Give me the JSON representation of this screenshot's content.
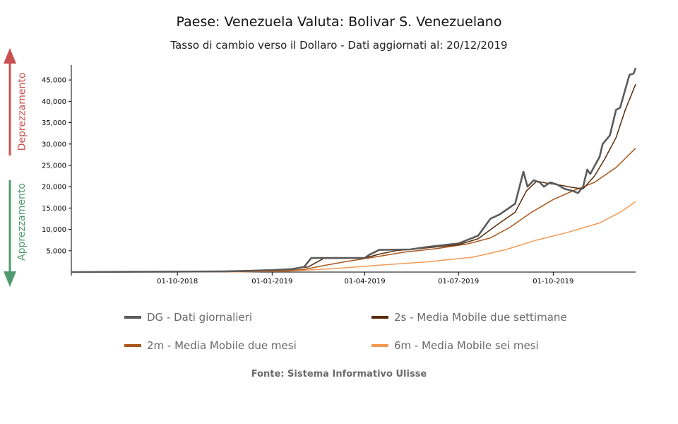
{
  "title": "Paese: Venezuela Valuta: Bolivar S. Venezuelano",
  "subtitle": "Tasso di cambio verso il Dollaro - Dati aggiornati al: 20/12/2019",
  "source": "Fonte: Sistema Informativo Ulisse",
  "side": {
    "up_label": "Deprezzamento",
    "down_label": "Apprezzamento",
    "up_color": "#c9504f",
    "down_color": "#4f9a6e"
  },
  "chart_data": {
    "type": "line",
    "title": "Paese: Venezuela Valuta: Bolivar S. Venezuelano",
    "subtitle": "Tasso di cambio verso il Dollaro - Dati aggiornati al: 20/12/2019",
    "xlabel": "",
    "ylabel": "",
    "xlim": [
      "2018-06-20",
      "2019-12-20"
    ],
    "ylim": [
      0,
      48500
    ],
    "x_ticks": [
      "01-10-2018",
      "01-01-2019",
      "01-04-2019",
      "01-07-2019",
      "01-10-2019"
    ],
    "y_ticks": [
      "5,000",
      "10,000",
      "15,000",
      "20,000",
      "25,000",
      "30,000",
      "35,000",
      "40,000",
      "45,000"
    ],
    "y_tick_values": [
      5000,
      10000,
      15000,
      20000,
      25000,
      30000,
      35000,
      40000,
      45000
    ],
    "grid": false,
    "legend_position": "bottom",
    "series": [
      {
        "name": "DG - Dati giornalieri",
        "color": "#5b5b5b",
        "points": [
          [
            "2018-06-20",
            3
          ],
          [
            "2018-08-20",
            60
          ],
          [
            "2018-10-01",
            100
          ],
          [
            "2018-11-15",
            150
          ],
          [
            "2018-12-10",
            300
          ],
          [
            "2018-12-31",
            450
          ],
          [
            "2019-01-20",
            700
          ],
          [
            "2019-02-01",
            1200
          ],
          [
            "2019-02-08",
            3300
          ],
          [
            "2019-03-15",
            3300
          ],
          [
            "2019-04-01",
            3300
          ],
          [
            "2019-04-05",
            4000
          ],
          [
            "2019-04-15",
            5200
          ],
          [
            "2019-05-15",
            5300
          ],
          [
            "2019-06-01",
            5900
          ],
          [
            "2019-07-01",
            6700
          ],
          [
            "2019-07-20",
            8500
          ],
          [
            "2019-08-01",
            12500
          ],
          [
            "2019-08-10",
            13500
          ],
          [
            "2019-08-25",
            16000
          ],
          [
            "2019-09-02",
            23500
          ],
          [
            "2019-09-06",
            20000
          ],
          [
            "2019-09-12",
            21500
          ],
          [
            "2019-09-18",
            21000
          ],
          [
            "2019-09-22",
            20000
          ],
          [
            "2019-09-28",
            21000
          ],
          [
            "2019-10-05",
            20500
          ],
          [
            "2019-10-12",
            19500
          ],
          [
            "2019-10-20",
            19000
          ],
          [
            "2019-10-25",
            18500
          ],
          [
            "2019-10-30",
            20000
          ],
          [
            "2019-11-03",
            24000
          ],
          [
            "2019-11-06",
            23000
          ],
          [
            "2019-11-15",
            27000
          ],
          [
            "2019-11-18",
            30000
          ],
          [
            "2019-11-25",
            32000
          ],
          [
            "2019-12-01",
            38000
          ],
          [
            "2019-12-05",
            38500
          ],
          [
            "2019-12-09",
            42000
          ],
          [
            "2019-12-14",
            46200
          ],
          [
            "2019-12-18",
            46500
          ],
          [
            "2019-12-20",
            47800
          ]
        ]
      },
      {
        "name": "2s - Media Mobile due settimane",
        "color": "#5a2a0a",
        "points": [
          [
            "2018-06-20",
            3
          ],
          [
            "2018-10-01",
            90
          ],
          [
            "2018-12-15",
            300
          ],
          [
            "2019-01-15",
            600
          ],
          [
            "2019-02-05",
            1200
          ],
          [
            "2019-02-20",
            3200
          ],
          [
            "2019-04-01",
            3300
          ],
          [
            "2019-04-15",
            4200
          ],
          [
            "2019-05-01",
            5000
          ],
          [
            "2019-06-01",
            5700
          ],
          [
            "2019-07-01",
            6400
          ],
          [
            "2019-07-20",
            7800
          ],
          [
            "2019-08-10",
            11500
          ],
          [
            "2019-08-25",
            14000
          ],
          [
            "2019-09-05",
            19000
          ],
          [
            "2019-09-15",
            21300
          ],
          [
            "2019-09-25",
            20800
          ],
          [
            "2019-10-05",
            20500
          ],
          [
            "2019-10-20",
            19800
          ],
          [
            "2019-10-30",
            19500
          ],
          [
            "2019-11-10",
            22500
          ],
          [
            "2019-11-20",
            26500
          ],
          [
            "2019-12-01",
            31500
          ],
          [
            "2019-12-10",
            38000
          ],
          [
            "2019-12-15",
            41000
          ],
          [
            "2019-12-20",
            44000
          ]
        ]
      },
      {
        "name": "2m - Media Mobile due mesi",
        "color": "#a9561c",
        "points": [
          [
            "2018-06-20",
            3
          ],
          [
            "2018-11-01",
            80
          ],
          [
            "2018-12-31",
            200
          ],
          [
            "2019-02-01",
            600
          ],
          [
            "2019-02-20",
            1500
          ],
          [
            "2019-03-15",
            2500
          ],
          [
            "2019-04-10",
            3500
          ],
          [
            "2019-05-10",
            4700
          ],
          [
            "2019-06-10",
            5500
          ],
          [
            "2019-07-10",
            6600
          ],
          [
            "2019-08-01",
            8000
          ],
          [
            "2019-08-20",
            10500
          ],
          [
            "2019-09-10",
            14000
          ],
          [
            "2019-10-01",
            17000
          ],
          [
            "2019-10-20",
            19000
          ],
          [
            "2019-11-10",
            21000
          ],
          [
            "2019-12-01",
            24500
          ],
          [
            "2019-12-20",
            29000
          ]
        ]
      },
      {
        "name": "6m - Media Mobile sei mesi",
        "color": "#f39a55",
        "points": [
          [
            "2018-06-20",
            3
          ],
          [
            "2018-12-01",
            50
          ],
          [
            "2019-01-15",
            200
          ],
          [
            "2019-03-01",
            800
          ],
          [
            "2019-04-15",
            1600
          ],
          [
            "2019-06-01",
            2400
          ],
          [
            "2019-07-15",
            3500
          ],
          [
            "2019-08-15",
            5200
          ],
          [
            "2019-09-15",
            7500
          ],
          [
            "2019-10-15",
            9300
          ],
          [
            "2019-11-15",
            11500
          ],
          [
            "2019-12-05",
            14000
          ],
          [
            "2019-12-20",
            16500
          ]
        ]
      }
    ]
  }
}
